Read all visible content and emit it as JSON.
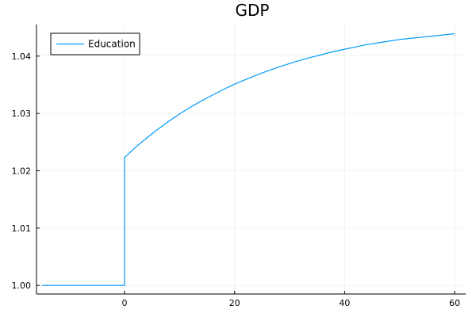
{
  "chart_data": {
    "type": "line",
    "title": "GDP",
    "xlabel": "",
    "ylabel": "",
    "xlim": [
      -16,
      62
    ],
    "ylim": [
      0.9985,
      1.0455
    ],
    "x_ticks": [
      0,
      20,
      40,
      60
    ],
    "x_tick_labels": [
      "0",
      "20",
      "40",
      "60"
    ],
    "y_ticks": [
      1.0,
      1.01,
      1.02,
      1.03,
      1.04
    ],
    "y_tick_labels": [
      "1.00",
      "1.01",
      "1.02",
      "1.03",
      "1.04"
    ],
    "grid": true,
    "legend_position": "top-left",
    "series": [
      {
        "name": "Education",
        "color": "#009AFA",
        "points": [
          [
            -15,
            1.0
          ],
          [
            0,
            1.0
          ],
          [
            0,
            1.0223
          ],
          [
            2,
            1.0241
          ],
          [
            4,
            1.0257
          ],
          [
            6,
            1.0272
          ],
          [
            8,
            1.0286
          ],
          [
            10,
            1.0299
          ],
          [
            12,
            1.0311
          ],
          [
            14,
            1.0322
          ],
          [
            16,
            1.0332
          ],
          [
            18,
            1.0342
          ],
          [
            20,
            1.0351
          ],
          [
            22,
            1.0359
          ],
          [
            24,
            1.0367
          ],
          [
            26,
            1.0374
          ],
          [
            28,
            1.0381
          ],
          [
            30,
            1.0387
          ],
          [
            32,
            1.0393
          ],
          [
            34,
            1.0398
          ],
          [
            36,
            1.0403
          ],
          [
            38,
            1.0408
          ],
          [
            40,
            1.0412
          ],
          [
            42,
            1.0416
          ],
          [
            44,
            1.042
          ],
          [
            46,
            1.0423
          ],
          [
            48,
            1.0426
          ],
          [
            50,
            1.0429
          ],
          [
            52,
            1.0431
          ],
          [
            54,
            1.0433
          ],
          [
            56,
            1.0435
          ],
          [
            58,
            1.0437
          ],
          [
            60,
            1.0439
          ]
        ]
      }
    ]
  }
}
